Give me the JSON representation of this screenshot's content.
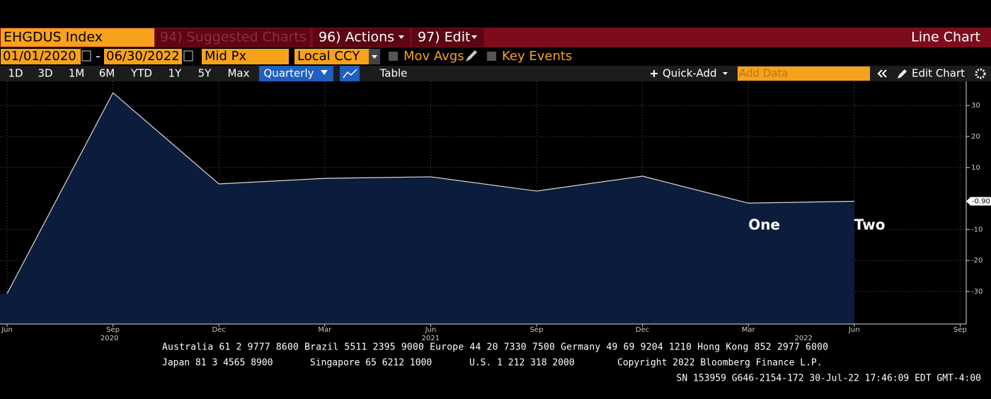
{
  "toolbar": {
    "security": "EHGDUS Index",
    "suggested": "94) Suggested Charts",
    "actions": "96) Actions",
    "edit": "97) Edit",
    "view": "Line Chart"
  },
  "settings": {
    "start": "01/01/2020",
    "dash": "-",
    "end": "06/30/2022",
    "price": "Mid Px",
    "currency": "Local CCY",
    "mov_avgs": "Mov Avgs",
    "key_events": "Key Events"
  },
  "ranges": [
    "1D",
    "3D",
    "1M",
    "6M",
    "YTD",
    "1Y",
    "5Y",
    "Max"
  ],
  "period": "Quarterly",
  "table": "Table",
  "quick_add": "Quick-Add",
  "add_data": "Add Data",
  "edit_chart": "Edit Chart",
  "chart_data": {
    "type": "line",
    "categories": [
      "Jun",
      "Sep",
      "Dec",
      "Mar",
      "Jun",
      "Sep",
      "Dec",
      "Mar",
      "Jun",
      "Sep"
    ],
    "years": [
      "2020",
      "2021",
      "2022"
    ],
    "values": [
      -30.7,
      34.1,
      4.7,
      6.5,
      7.0,
      2.4,
      7.2,
      -1.5,
      -0.9,
      null
    ],
    "current_value_label": "-0.90",
    "color": "#d8d8d8",
    "fill": "#0c1c3c",
    "ylim": [
      -40.5,
      37.8
    ],
    "yticks": [
      -30,
      -20,
      -10,
      10,
      20,
      30
    ],
    "grid": true,
    "annotations": [
      "One",
      "Two"
    ]
  },
  "footer": [
    "Australia 61 2 9777 8600 Brazil 5511 2395 9000 Europe 44 20 7330 7500 Germany 49 69 9204 1210 Hong Kong 852 2977 6000",
    "Japan 81 3 4565 8900",
    "Singapore 65 6212 1000",
    "U.S. 1 212 318 2000",
    "Copyright 2022 Bloomberg Finance L.P.",
    "SN 153959 G646-2154-172 30-Jul-22 17:46:09 EDT GMT-4:00"
  ]
}
